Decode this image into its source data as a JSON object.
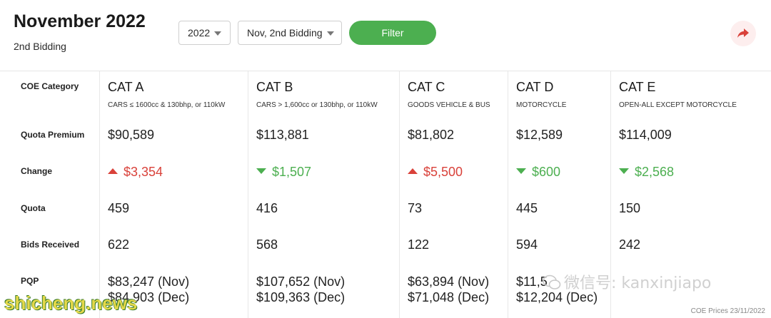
{
  "header": {
    "title": "November 2022",
    "subtitle": "2nd Bidding",
    "year_select": "2022",
    "round_select": "Nov, 2nd Bidding",
    "filter_label": "Filter",
    "share_icon": "share-arrow-icon"
  },
  "row_labels": {
    "category": "COE Category",
    "premium": "Quota Premium",
    "change": "Change",
    "quota": "Quota",
    "bids": "Bids Received",
    "pqp": "PQP"
  },
  "categories": [
    {
      "name": "CAT A",
      "desc": "CARS ≤ 1600cc & 130bhp, or 110kW",
      "premium": "$90,589",
      "change": "$3,354",
      "direction": "up",
      "quota": "459",
      "bids": "622",
      "pqp_nov": "$83,247 (Nov)",
      "pqp_dec": "$84,903 (Dec)"
    },
    {
      "name": "CAT B",
      "desc": "CARS > 1,600cc or 130bhp, or 110kW",
      "premium": "$113,881",
      "change": "$1,507",
      "direction": "down",
      "quota": "416",
      "bids": "568",
      "pqp_nov": "$107,652 (Nov)",
      "pqp_dec": "$109,363 (Dec)"
    },
    {
      "name": "CAT C",
      "desc": "GOODS VEHICLE & BUS",
      "premium": "$81,802",
      "change": "$5,500",
      "direction": "up",
      "quota": "73",
      "bids": "122",
      "pqp_nov": "$63,894 (Nov)",
      "pqp_dec": "$71,048 (Dec)"
    },
    {
      "name": "CAT D",
      "desc": "MOTORCYCLE",
      "premium": "$12,589",
      "change": "$600",
      "direction": "down",
      "quota": "445",
      "bids": "594",
      "pqp_nov": "$11,5",
      "pqp_dec": "$12,204 (Dec)"
    },
    {
      "name": "CAT E",
      "desc": "OPEN-ALL EXCEPT MOTORCYCLE",
      "premium": "$114,009",
      "change": "$2,568",
      "direction": "down",
      "quota": "150",
      "bids": "242",
      "pqp_nov": "",
      "pqp_dec": ""
    }
  ],
  "footnote": "COE Prices 23/11/2022",
  "watermark": "微信号: kanxinjiapo",
  "site_mark": "shicheng.news",
  "colors": {
    "up": "#d9413a",
    "down": "#4caf50",
    "filter": "#4caf50"
  }
}
